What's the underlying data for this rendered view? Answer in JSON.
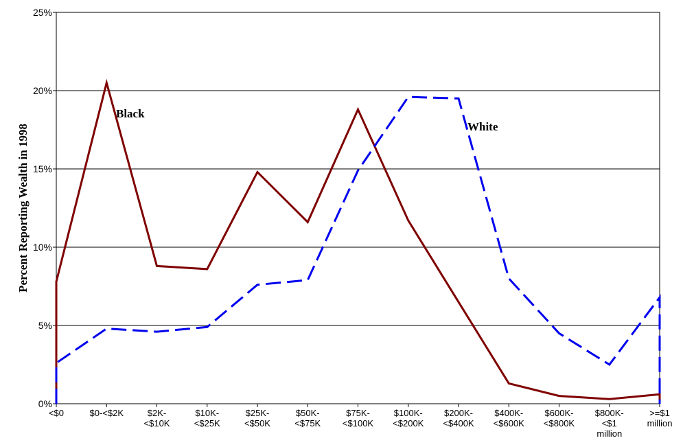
{
  "chart_data": {
    "type": "line",
    "ylabel": "Percent Reporting Wealth in 1998",
    "xlabel": "",
    "ylim": [
      0,
      25
    ],
    "yticks": [
      0,
      5,
      10,
      15,
      20,
      25
    ],
    "ytick_labels": [
      "0%",
      "5%",
      "10%",
      "15%",
      "20%",
      "25%"
    ],
    "grid": "horizontal",
    "categories": [
      [
        "<$0"
      ],
      [
        "$0-<$2K"
      ],
      [
        "$2K-",
        "<$10K"
      ],
      [
        "$10K-",
        "<$25K"
      ],
      [
        "$25K-",
        "<$50K"
      ],
      [
        "$50K-",
        "<$75K"
      ],
      [
        "$75K-",
        "<$100K"
      ],
      [
        "$100K-",
        "<$200K"
      ],
      [
        "$200K-",
        "<$400K"
      ],
      [
        "$400K-",
        "<$600K"
      ],
      [
        "$600K-",
        "<$800K"
      ],
      [
        "$800K-",
        "<$1",
        "million"
      ],
      [
        ">=$1",
        "million"
      ]
    ],
    "series": [
      {
        "name": "Black",
        "color": "#7f0000",
        "style": "solid",
        "values": [
          7.8,
          20.5,
          8.8,
          8.6,
          14.8,
          11.6,
          18.8,
          11.7,
          6.5,
          1.3,
          0.5,
          0.3,
          0.6
        ]
      },
      {
        "name": "White",
        "color": "#0000ee",
        "style": "dashed",
        "values": [
          2.6,
          4.8,
          4.6,
          4.9,
          7.6,
          7.9,
          14.9,
          19.6,
          19.5,
          8.0,
          4.5,
          2.5,
          6.8
        ]
      }
    ]
  }
}
